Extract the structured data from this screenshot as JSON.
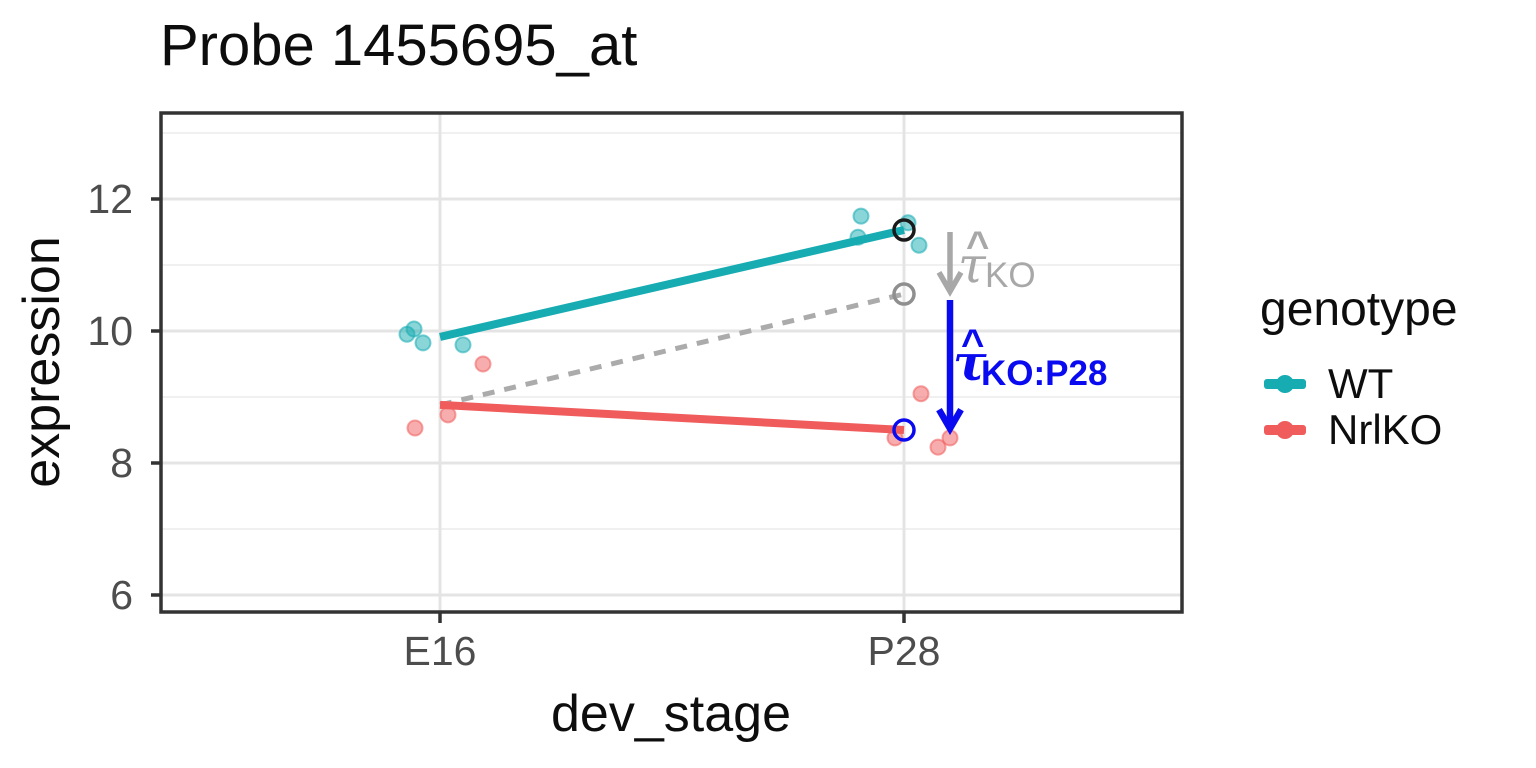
{
  "title": "Probe 1455695_at",
  "axes": {
    "x": {
      "label": "dev_stage"
    },
    "y": {
      "label": "expression"
    }
  },
  "legend": {
    "title": "genotype",
    "items": [
      {
        "label": "WT",
        "color": "#16ACB2"
      },
      {
        "label": "NrlKO",
        "color": "#F05C5C"
      }
    ]
  },
  "chart_data": {
    "type": "line+scatter",
    "title": "Probe 1455695_at",
    "xlabel": "dev_stage",
    "ylabel": "expression",
    "x_categories": [
      "E16",
      "P28"
    ],
    "y_ticks": [
      12,
      10,
      8,
      6
    ],
    "y_minor_ticks": [
      13,
      11,
      9,
      7
    ],
    "ylim": [
      5.6,
      13.3
    ],
    "legend_position": "right",
    "grid": true,
    "series": [
      {
        "name": "WT",
        "color": "#16ACB2",
        "fitted_line": {
          "E16": 9.91,
          "P28": 11.53
        },
        "points": [
          {
            "stage": "E16",
            "value": 9.95,
            "dx": -33
          },
          {
            "stage": "E16",
            "value": 10.03,
            "dx": -26
          },
          {
            "stage": "E16",
            "value": 9.82,
            "dx": -17
          },
          {
            "stage": "E16",
            "value": 9.79,
            "dx": 23
          },
          {
            "stage": "P28",
            "value": 11.74,
            "dx": -43
          },
          {
            "stage": "P28",
            "value": 11.42,
            "dx": -46
          },
          {
            "stage": "P28",
            "value": 11.64,
            "dx": 4
          },
          {
            "stage": "P28",
            "value": 11.3,
            "dx": 15
          }
        ]
      },
      {
        "name": "NrlKO",
        "color": "#F05C5C",
        "fitted_line": {
          "E16": 8.88,
          "P28": 8.5
        },
        "points": [
          {
            "stage": "E16",
            "value": 9.5,
            "dx": 43
          },
          {
            "stage": "E16",
            "value": 8.73,
            "dx": 8
          },
          {
            "stage": "E16",
            "value": 8.53,
            "dx": -25
          },
          {
            "stage": "P28",
            "value": 9.05,
            "dx": 17
          },
          {
            "stage": "P28",
            "value": 8.38,
            "dx": -9
          },
          {
            "stage": "P28",
            "value": 8.38,
            "dx": 46
          },
          {
            "stage": "P28",
            "value": 8.24,
            "dx": 34
          }
        ]
      }
    ],
    "dashed_reference_line": {
      "color": "#ABABAB",
      "from": {
        "stage": "E16",
        "value": 8.88
      },
      "to": {
        "stage": "P28",
        "value": 10.56
      },
      "meaning": "NrlKO trajectory expected without interaction"
    },
    "open_markers": [
      {
        "stage": "P28",
        "value": 11.53,
        "color": "#1a1a1a"
      },
      {
        "stage": "P28",
        "value": 10.56,
        "color": "#8F8F8F"
      },
      {
        "stage": "P28",
        "value": 8.5,
        "color": "#0A0AF0"
      }
    ],
    "arrows": [
      {
        "stage": "P28",
        "dx": 46,
        "from": 11.5,
        "to": 10.6,
        "color": "#A8A8A8",
        "width": 5.5
      },
      {
        "stage": "P28",
        "dx": 46,
        "from": 10.47,
        "to": 8.52,
        "color": "#0A0AF0",
        "width": 6.5
      }
    ],
    "annotations": [
      {
        "id": "tau_KO",
        "hat": "^",
        "symbol": "τ",
        "subscript": "KO",
        "color": "#A8A8A8"
      },
      {
        "id": "tau_KO_P28",
        "hat": "^",
        "symbol": "τ",
        "subscript": "KO:P28",
        "color": "#0A0AF0"
      }
    ]
  },
  "style": {
    "panel_border": "#333333",
    "grid_major": "#E4E4E4",
    "grid_minor": "#F0F0F0",
    "tick_color": "#333333",
    "tick_label_color": "#4D4D4D"
  }
}
